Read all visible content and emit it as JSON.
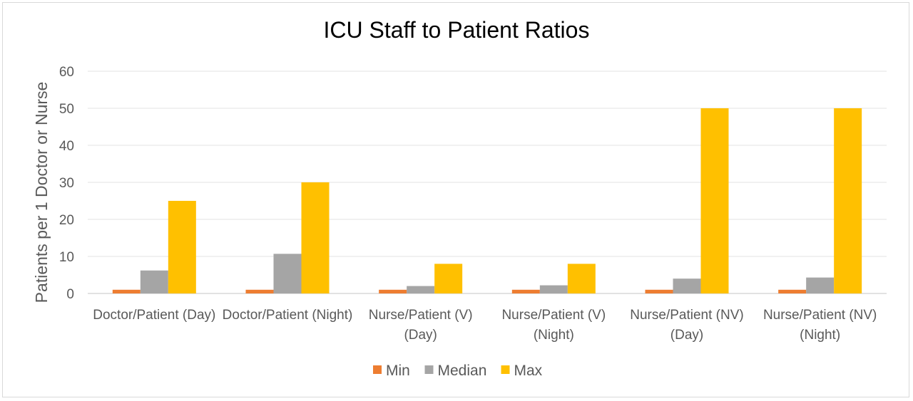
{
  "chart_data": {
    "type": "bar",
    "title": "ICU Staff to Patient Ratios",
    "xlabel": "",
    "ylabel": "Patients per 1 Doctor or Nurse",
    "ylim": [
      0,
      60
    ],
    "yticks": [
      0,
      10,
      20,
      30,
      40,
      50,
      60
    ],
    "grid": true,
    "legend_position": "bottom",
    "categories": [
      [
        "Doctor/Patient (Day)"
      ],
      [
        "Doctor/Patient (Night)"
      ],
      [
        "Nurse/Patient (V)",
        "(Day)"
      ],
      [
        "Nurse/Patient (V)",
        "(Night)"
      ],
      [
        "Nurse/Patient (NV)",
        "(Day)"
      ],
      [
        "Nurse/Patient (NV)",
        "(Night)"
      ]
    ],
    "series": [
      {
        "name": "Min",
        "color": "#ed7d31",
        "values": [
          1,
          1,
          1,
          1,
          1,
          1
        ]
      },
      {
        "name": "Median",
        "color": "#a5a5a5",
        "values": [
          6.2,
          10.7,
          2,
          2.2,
          4,
          4.3
        ]
      },
      {
        "name": "Max",
        "color": "#ffc000",
        "values": [
          25,
          30,
          8,
          8,
          50,
          50
        ]
      }
    ]
  }
}
